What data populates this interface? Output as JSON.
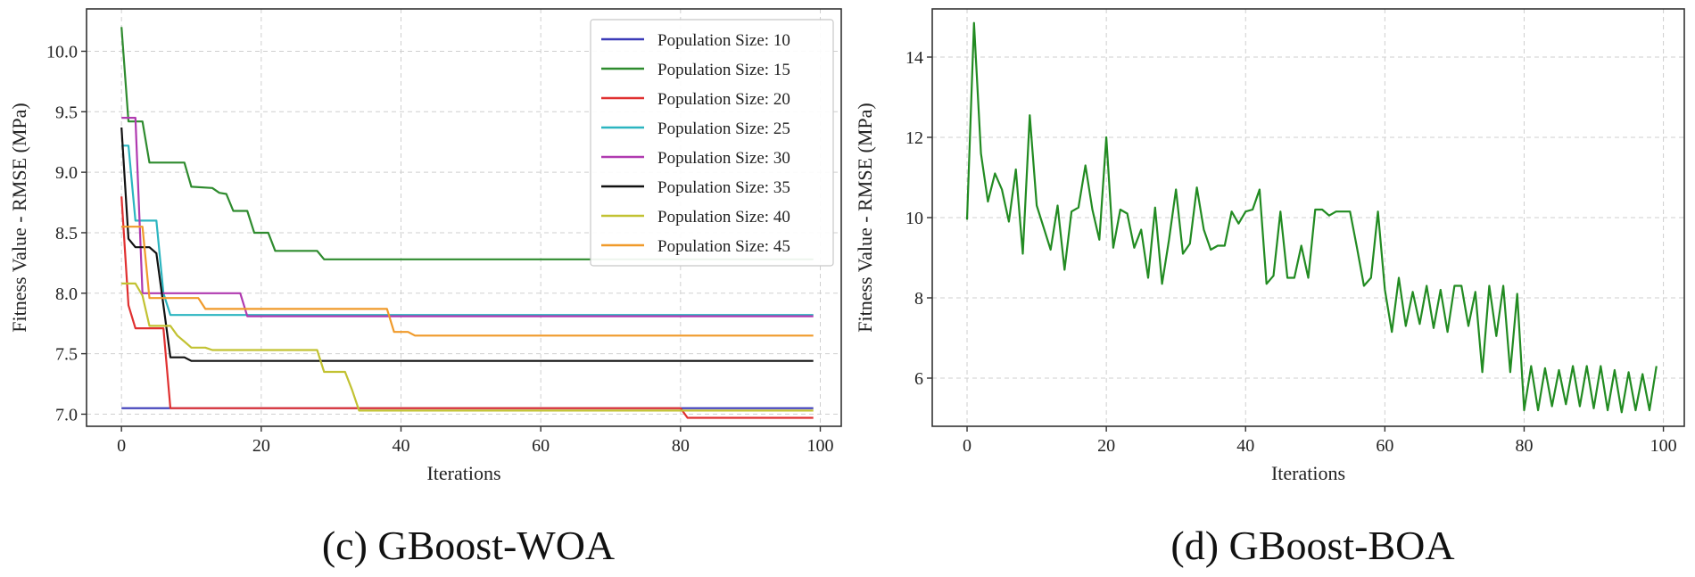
{
  "chart_data": [
    {
      "type": "line",
      "caption": "(c) GBoost-WOA",
      "xlabel": "Iterations",
      "ylabel": "Fitness Value - RMSE (MPa)",
      "xlim": [
        -5,
        103
      ],
      "ylim": [
        6.9,
        10.35
      ],
      "xticks": [
        0,
        20,
        40,
        60,
        80,
        100
      ],
      "yticks": [
        7.0,
        7.5,
        8.0,
        8.5,
        9.0,
        9.5,
        10.0
      ],
      "ytick_labels": [
        "7.0",
        "7.5",
        "8.0",
        "8.5",
        "9.0",
        "9.5",
        "10.0"
      ],
      "grid": true,
      "legend_position": "top-right",
      "series": [
        {
          "name": "Population Size: 10",
          "color": "#3b3bb8",
          "x": [
            0,
            99
          ],
          "y": [
            7.05,
            7.05
          ]
        },
        {
          "name": "Population Size: 15",
          "color": "#2e8b2e",
          "x": [
            0,
            1,
            2,
            3,
            4,
            9,
            10,
            13,
            14,
            15,
            16,
            18,
            19,
            21,
            22,
            28,
            29,
            99
          ],
          "y": [
            10.2,
            9.42,
            9.42,
            9.42,
            9.08,
            9.08,
            8.88,
            8.87,
            8.83,
            8.82,
            8.68,
            8.68,
            8.5,
            8.5,
            8.35,
            8.35,
            8.28,
            8.28
          ]
        },
        {
          "name": "Population Size: 20",
          "color": "#e03030",
          "x": [
            0,
            1,
            2,
            6,
            7,
            80,
            81,
            99
          ],
          "y": [
            8.8,
            7.9,
            7.71,
            7.71,
            7.05,
            7.05,
            6.97,
            6.97
          ]
        },
        {
          "name": "Population Size: 25",
          "color": "#2bb5c0",
          "x": [
            0,
            1,
            2,
            5,
            6,
            7,
            99
          ],
          "y": [
            9.22,
            9.22,
            8.6,
            8.6,
            8.0,
            7.82,
            7.82
          ]
        },
        {
          "name": "Population Size: 30",
          "color": "#b03ab0",
          "x": [
            0,
            2,
            3,
            17,
            18,
            99
          ],
          "y": [
            9.45,
            9.45,
            8.0,
            8.0,
            7.81,
            7.81
          ]
        },
        {
          "name": "Population Size: 35",
          "color": "#111111",
          "x": [
            0,
            1,
            2,
            4,
            5,
            6,
            7,
            9,
            10,
            99
          ],
          "y": [
            9.37,
            8.45,
            8.38,
            8.38,
            8.33,
            7.9,
            7.47,
            7.47,
            7.44,
            7.44
          ]
        },
        {
          "name": "Population Size: 40",
          "color": "#c2c232",
          "x": [
            0,
            2,
            3,
            4,
            7,
            8,
            9,
            10,
            12,
            13,
            28,
            29,
            32,
            33,
            34,
            99
          ],
          "y": [
            8.08,
            8.08,
            7.98,
            7.73,
            7.73,
            7.65,
            7.6,
            7.55,
            7.55,
            7.53,
            7.53,
            7.35,
            7.35,
            7.2,
            7.03,
            7.03
          ]
        },
        {
          "name": "Population Size: 45",
          "color": "#f09a2a",
          "x": [
            0,
            3,
            4,
            5,
            11,
            12,
            38,
            39,
            41,
            42,
            99
          ],
          "y": [
            8.55,
            8.55,
            7.96,
            7.96,
            7.96,
            7.87,
            7.87,
            7.68,
            7.68,
            7.65,
            7.65
          ]
        }
      ]
    },
    {
      "type": "line",
      "caption": "(d) GBoost-BOA",
      "xlabel": "Iterations",
      "ylabel": "Fitness Value - RMSE (MPa)",
      "xlim": [
        -5,
        103
      ],
      "ylim": [
        4.8,
        15.2
      ],
      "xticks": [
        0,
        20,
        40,
        60,
        80,
        100
      ],
      "yticks": [
        6,
        8,
        10,
        12,
        14
      ],
      "ytick_labels": [
        "6",
        "8",
        "10",
        "12",
        "14"
      ],
      "grid": true,
      "series": [
        {
          "color": "#228b22",
          "x": [
            0,
            1,
            2,
            3,
            4,
            5,
            6,
            7,
            8,
            9,
            10,
            11,
            12,
            13,
            14,
            15,
            16,
            17,
            18,
            19,
            20,
            21,
            22,
            23,
            24,
            25,
            26,
            27,
            28,
            29,
            30,
            31,
            32,
            33,
            34,
            35,
            36,
            37,
            38,
            39,
            40,
            41,
            42,
            43,
            44,
            45,
            46,
            47,
            48,
            49,
            50,
            51,
            52,
            53,
            54,
            55,
            56,
            57,
            58,
            59,
            60,
            61,
            62,
            63,
            64,
            65,
            66,
            67,
            68,
            69,
            70,
            71,
            72,
            73,
            74,
            75,
            76,
            77,
            78,
            79,
            80,
            81,
            82,
            83,
            84,
            85,
            86,
            87,
            88,
            89,
            90,
            91,
            92,
            93,
            94,
            95,
            96,
            97,
            98,
            99
          ],
          "y": [
            9.95,
            14.85,
            11.6,
            10.4,
            11.1,
            10.7,
            9.9,
            11.2,
            9.1,
            12.55,
            10.3,
            9.75,
            9.2,
            10.3,
            8.7,
            10.15,
            10.25,
            11.3,
            10.2,
            9.45,
            12.0,
            9.25,
            10.2,
            10.1,
            9.25,
            9.7,
            8.5,
            10.25,
            8.35,
            9.45,
            10.7,
            9.1,
            9.35,
            10.75,
            9.7,
            9.2,
            9.3,
            9.3,
            10.15,
            9.85,
            10.15,
            10.2,
            10.7,
            8.35,
            8.55,
            10.15,
            8.5,
            8.5,
            9.3,
            8.5,
            10.2,
            10.2,
            10.05,
            10.15,
            10.15,
            10.15,
            9.25,
            8.3,
            8.5,
            10.15,
            8.2,
            7.15,
            8.5,
            7.3,
            8.15,
            7.35,
            8.3,
            7.25,
            8.2,
            7.15,
            8.3,
            8.3,
            7.3,
            8.15,
            6.15,
            8.3,
            7.05,
            8.3,
            6.15,
            8.1,
            5.2,
            6.3,
            5.2,
            6.25,
            5.3,
            6.2,
            5.35,
            6.3,
            5.3,
            6.3,
            5.25,
            6.3,
            5.2,
            6.2,
            5.15,
            6.15,
            5.2,
            6.1,
            5.2,
            6.3
          ]
        }
      ]
    }
  ]
}
